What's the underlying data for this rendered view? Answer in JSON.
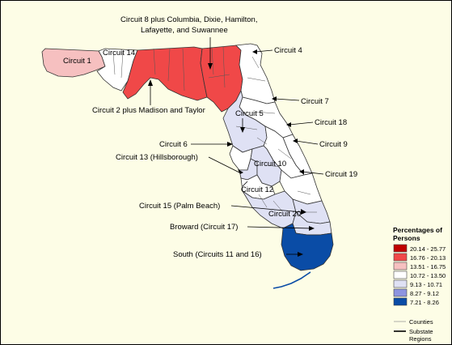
{
  "map": {
    "labels": {
      "circuit8": "Circuit 8 plus Columbia, Dixie, Hamilton,",
      "circuit8_line2": "Lafayette, and Suwannee",
      "circuit1": "Circuit 1",
      "circuit14": "Circuit 14",
      "circuit4": "Circuit 4",
      "circuit2": "Circuit 2 plus Madison and Taylor",
      "circuit7": "Circuit 7",
      "circuit5": "Circuit 5",
      "circuit18": "Circuit 18",
      "circuit6": "Circuit 6",
      "circuit9": "Circuit 9",
      "circuit13": "Circuit 13 (Hillsborough)",
      "circuit10": "Circuit 10",
      "circuit19": "Circuit 19",
      "circuit12": "Circuit 12",
      "circuit15": "Circuit 15 (Palm Beach)",
      "circuit20": "Circuit 20",
      "broward": "Broward (Circuit 17)",
      "south": "South (Circuits 11 and 16)"
    },
    "colors": {
      "background": "#fdfde6",
      "red_dark": "#c00000",
      "red": "#f04848",
      "pink": "#f6c0c0",
      "white": "#ffffff",
      "lavender": "#dfe1f4",
      "blue_light": "#8d94e0",
      "blue": "#0a4ca6"
    },
    "legend": {
      "title_line1": "Percentages of",
      "title_line2": "Persons",
      "items": [
        {
          "label": "20.14 - 25.77",
          "color": "#c00000"
        },
        {
          "label": "16.76 - 20.13",
          "color": "#f04848"
        },
        {
          "label": "13.51 - 16.75",
          "color": "#f6c0c0"
        },
        {
          "label": "10.72 - 13.50",
          "color": "#ffffff"
        },
        {
          "label": "9.13 - 10.71",
          "color": "#dfe1f4"
        },
        {
          "label": "8.27 - 9.12",
          "color": "#8d94e0"
        },
        {
          "label": "7.21 - 8.26",
          "color": "#0a4ca6"
        }
      ],
      "counties_label": "Counties",
      "substate_label_line1": "Substate",
      "substate_label_line2": "Regions"
    }
  }
}
